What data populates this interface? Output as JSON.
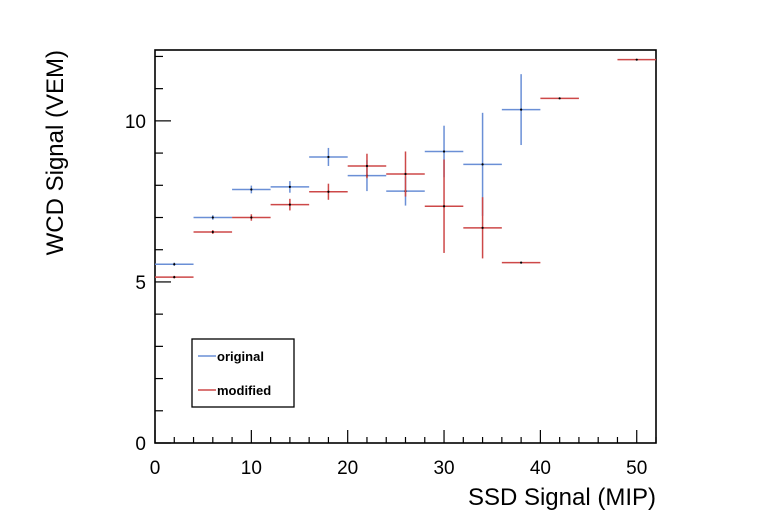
{
  "chart_data": {
    "type": "scatter",
    "xlabel": "SSD Signal (MIP)",
    "ylabel": "WCD Signal (VEM)",
    "xlim": [
      0,
      52
    ],
    "ylim": [
      0,
      12.2
    ],
    "x_ticks": [
      0,
      10,
      20,
      30,
      40,
      50
    ],
    "y_ticks": [
      0,
      5,
      10
    ],
    "legend_position": "bottom-left",
    "series": [
      {
        "name": "original",
        "color": "#6a8fd6",
        "points": [
          {
            "x": 2,
            "xerr": 2,
            "y": 5.55,
            "yerr": 0.05
          },
          {
            "x": 6,
            "xerr": 2,
            "y": 7.0,
            "yerr": 0.07
          },
          {
            "x": 10,
            "xerr": 2,
            "y": 7.87,
            "yerr": 0.12
          },
          {
            "x": 14,
            "xerr": 2,
            "y": 7.95,
            "yerr": 0.18
          },
          {
            "x": 18,
            "xerr": 2,
            "y": 8.88,
            "yerr": 0.28
          },
          {
            "x": 22,
            "xerr": 2,
            "y": 8.3,
            "yerr": 0.48
          },
          {
            "x": 26,
            "xerr": 2,
            "y": 7.82,
            "yerr": 0.45
          },
          {
            "x": 30,
            "xerr": 2,
            "y": 9.05,
            "yerr": 0.8
          },
          {
            "x": 34,
            "xerr": 2,
            "y": 8.65,
            "yerr": 1.6
          },
          {
            "x": 38,
            "xerr": 2,
            "y": 10.35,
            "yerr": 1.1
          }
        ]
      },
      {
        "name": "modified",
        "color": "#cd4848",
        "points": [
          {
            "x": 2,
            "xerr": 2,
            "y": 5.15,
            "yerr": 0.04
          },
          {
            "x": 6,
            "xerr": 2,
            "y": 6.55,
            "yerr": 0.06
          },
          {
            "x": 10,
            "xerr": 2,
            "y": 7.0,
            "yerr": 0.1
          },
          {
            "x": 14,
            "xerr": 2,
            "y": 7.4,
            "yerr": 0.18
          },
          {
            "x": 18,
            "xerr": 2,
            "y": 7.8,
            "yerr": 0.25
          },
          {
            "x": 22,
            "xerr": 2,
            "y": 8.6,
            "yerr": 0.38
          },
          {
            "x": 26,
            "xerr": 2,
            "y": 8.35,
            "yerr": 0.7
          },
          {
            "x": 30,
            "xerr": 2,
            "y": 7.35,
            "yerr": 1.45
          },
          {
            "x": 34,
            "xerr": 2,
            "y": 6.68,
            "yerr": 0.95
          },
          {
            "x": 38,
            "xerr": 2,
            "y": 5.6,
            "yerr": 0.0
          },
          {
            "x": 42,
            "xerr": 2,
            "y": 10.7,
            "yerr": 0.0
          },
          {
            "x": 50,
            "xerr": 2,
            "y": 11.9,
            "yerr": 0.0
          }
        ]
      }
    ]
  }
}
